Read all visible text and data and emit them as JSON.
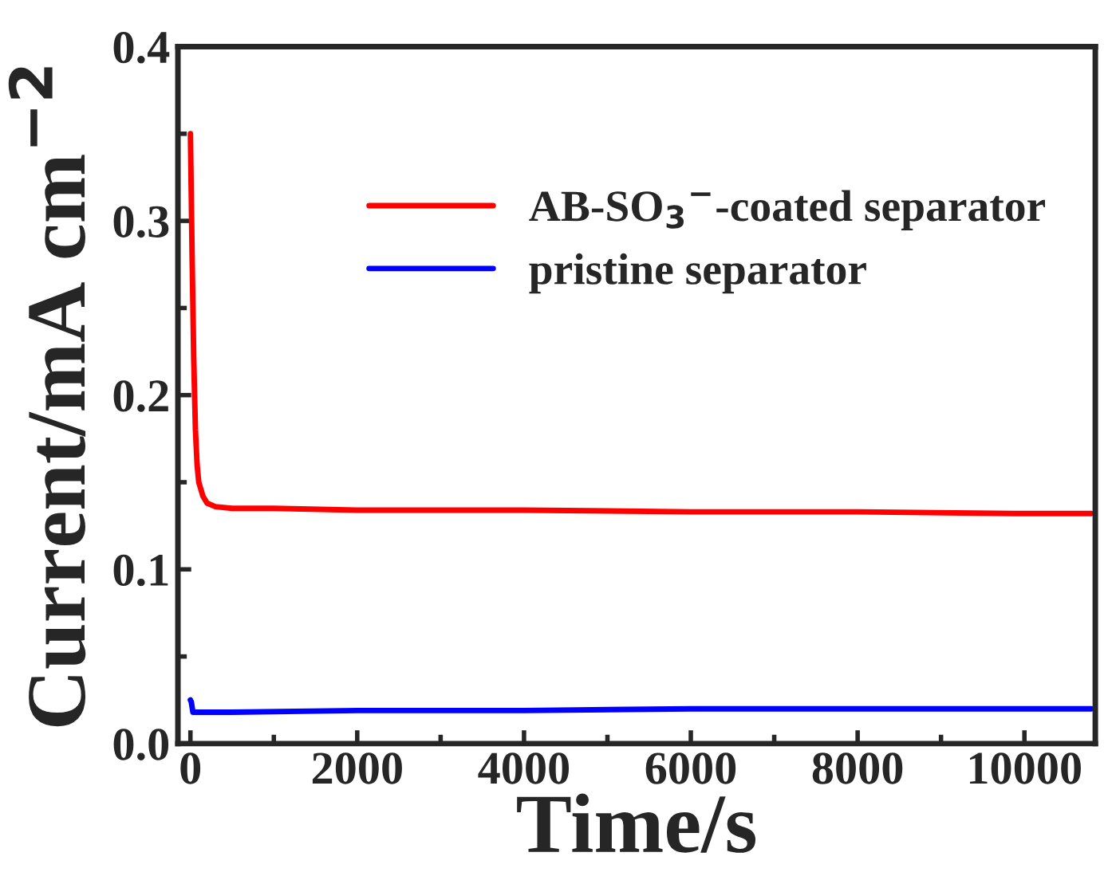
{
  "chart_data": {
    "type": "line",
    "xlabel": "Time/s",
    "ylabel": "Current/mA cm$^{−2}$",
    "xlim": [
      -150,
      10850
    ],
    "xticks": [
      0,
      2000,
      4000,
      6000,
      8000,
      10000
    ],
    "ylim": [
      0.0,
      0.4
    ],
    "yticks": [
      {
        "value": 0.0,
        "label": "0.0"
      },
      0.1,
      0.2,
      0.3,
      0.4
    ],
    "grid": false,
    "legend": "right",
    "marker": "none",
    "line_style": "solid",
    "series": [
      {
        "name": "AB-SO$_{3}$$^{−}$-coated separator",
        "color": "#ff0000",
        "x": [
          0,
          20,
          40,
          60,
          80,
          100,
          150,
          200,
          300,
          500,
          1000,
          2000,
          4000,
          6000,
          8000,
          10000,
          10800
        ],
        "values": [
          0.35,
          0.28,
          0.22,
          0.18,
          0.16,
          0.15,
          0.142,
          0.138,
          0.136,
          0.135,
          0.135,
          0.134,
          0.134,
          0.133,
          0.133,
          0.132,
          0.132
        ]
      },
      {
        "name": "pristine separator",
        "color": "#0000ff",
        "x": [
          0,
          10,
          30,
          500,
          2000,
          4000,
          6000,
          8000,
          10000,
          10800
        ],
        "values": [
          0.025,
          0.024,
          0.018,
          0.018,
          0.019,
          0.019,
          0.02,
          0.02,
          0.02,
          0.02
        ]
      }
    ]
  }
}
